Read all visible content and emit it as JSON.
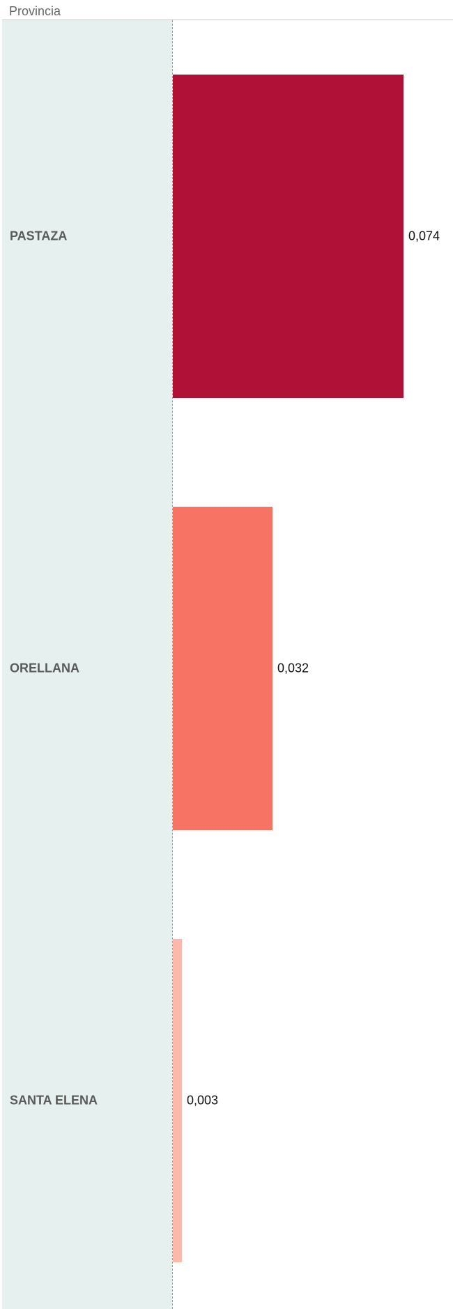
{
  "chart_data": {
    "type": "bar",
    "orientation": "horizontal",
    "header": "Provincia",
    "categories": [
      "PASTAZA",
      "ORELLANA",
      "SANTA ELENA"
    ],
    "values": [
      0.074,
      0.032,
      0.003
    ],
    "value_labels": [
      "0,074",
      "0,032",
      "0,003"
    ],
    "colors": [
      "#b01237",
      "#f77464",
      "#fdb8ac"
    ],
    "xlim": [
      0,
      0.08
    ],
    "grid": false,
    "legend": "none"
  }
}
